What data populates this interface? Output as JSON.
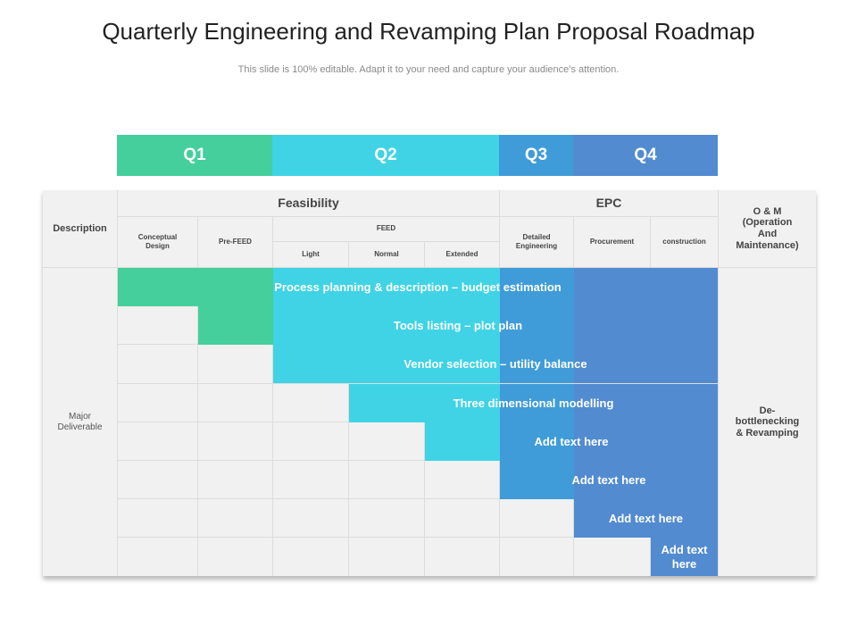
{
  "title": "Quarterly Engineering and Revamping Plan Proposal Roadmap",
  "subtitle": "This slide is 100% editable. Adapt it to your need and capture your audience’s attention.",
  "colors": {
    "green": "#44cf9c",
    "cyan": "#3fd3e5",
    "blue": "#528bd0",
    "midblue": "#3f9cd8",
    "cell": "#f1f1f1",
    "grid": "#dcdcdc"
  },
  "quarters": [
    "Q1",
    "Q2",
    "Q3",
    "Q4"
  ],
  "header": {
    "description": "Description",
    "feasibility": "Feasibility",
    "epc": "EPC",
    "om": "O & M (Operation And Maintenance)",
    "conceptual_design": "Conceptual Design",
    "pre_feed": "Pre-FEED",
    "feed": "FEED",
    "light": "Light",
    "normal": "Normal",
    "extended": "Extended",
    "detailed_engineering": "Detailed Engineering",
    "procurement": "Procurement",
    "construction": "construction"
  },
  "row_label": "Major Deliverable",
  "om_deliverable": "De-bottlenecking & Revamping",
  "deliverables": [
    "Process planning & description – budget estimation",
    "Tools listing – plot plan",
    "Vendor selection – utility balance",
    "Three dimensional modelling",
    "Add text here",
    "Add text here",
    "Add text here",
    "Add text here"
  ]
}
